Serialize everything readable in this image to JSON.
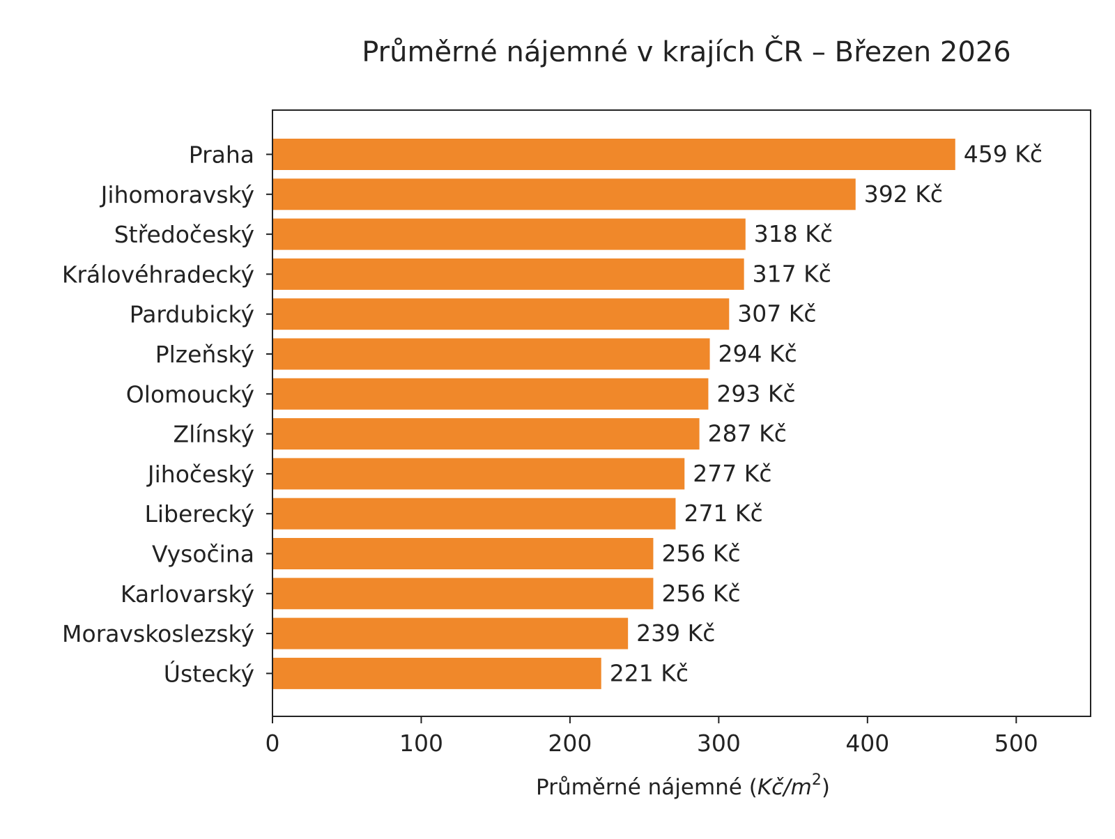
{
  "chart_data": {
    "type": "bar",
    "orientation": "horizontal",
    "title": "Průměrné nájemné v krajích ČR – Březen 2026",
    "xlabel_main": "Průměrné nájemné (",
    "xlabel_unit": "Kč/m",
    "xlabel_sup": "2",
    "xlabel_close": ")",
    "categories": [
      "Praha",
      "Jihomoravský",
      "Středočeský",
      "Královéhradecký",
      "Pardubický",
      "Plzeňský",
      "Olomoucký",
      "Zlínský",
      "Jihočeský",
      "Liberecký",
      "Vysočina",
      "Karlovarský",
      "Moravskoslezský",
      "Ústecký"
    ],
    "values": [
      459,
      392,
      318,
      317,
      307,
      294,
      293,
      287,
      277,
      271,
      256,
      256,
      239,
      221
    ],
    "data_labels": [
      "459 Kč",
      "392 Kč",
      "318 Kč",
      "317 Kč",
      "307 Kč",
      "294 Kč",
      "293 Kč",
      "287 Kč",
      "277 Kč",
      "271 Kč",
      "256 Kč",
      "256 Kč",
      "239 Kč",
      "221 Kč"
    ],
    "xlim": [
      0,
      550
    ],
    "xticks": [
      0,
      100,
      200,
      300,
      400,
      500
    ],
    "xtick_labels": [
      "0",
      "100",
      "200",
      "300",
      "400",
      "500"
    ],
    "grid": false,
    "legend": "none",
    "bar_color": "#F0882A",
    "text_color": "#222222"
  }
}
